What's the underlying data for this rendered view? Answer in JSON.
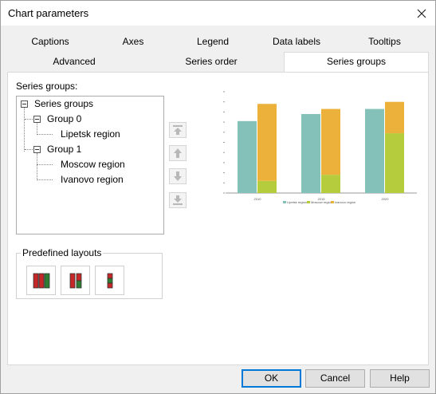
{
  "window": {
    "title": "Chart parameters"
  },
  "tabs": {
    "row1": [
      "Captions",
      "Axes",
      "Legend",
      "Data labels",
      "Tooltips"
    ],
    "row2": [
      "Advanced",
      "Series order",
      "Series groups"
    ],
    "active": "Series groups"
  },
  "series_groups": {
    "label": "Series groups:",
    "tree": {
      "root": "Series groups",
      "groups": [
        {
          "name": "Group 0",
          "items": [
            "Lipetsk region"
          ]
        },
        {
          "name": "Group 1",
          "items": [
            "Moscow region",
            "Ivanovo region"
          ]
        }
      ]
    },
    "move_buttons": [
      "move-to-top-icon",
      "move-up-icon",
      "move-down-icon",
      "move-to-bottom-icon"
    ]
  },
  "predefined_layouts": {
    "label": "Predefined layouts",
    "options": [
      "layout-three-columns-icon",
      "layout-two-columns-icon",
      "layout-one-column-icon"
    ]
  },
  "buttons": {
    "ok": "OK",
    "cancel": "Cancel",
    "help": "Help"
  },
  "chart_data": {
    "type": "bar",
    "stacked_groups": true,
    "categories": [
      "2010",
      "2015",
      "2020"
    ],
    "ylim": [
      0,
      100
    ],
    "series": [
      {
        "name": "Lipetsk region",
        "group": 0,
        "color": "#84c1b9",
        "values": [
          71,
          78,
          83
        ]
      },
      {
        "name": "Moscow region",
        "group": 1,
        "color": "#b5cc3c",
        "values": [
          12,
          18,
          59
        ]
      },
      {
        "name": "Ivanovo region",
        "group": 1,
        "color": "#ecb13a",
        "values": [
          76,
          65,
          31
        ]
      }
    ],
    "legend": "bottom",
    "grid": false
  }
}
